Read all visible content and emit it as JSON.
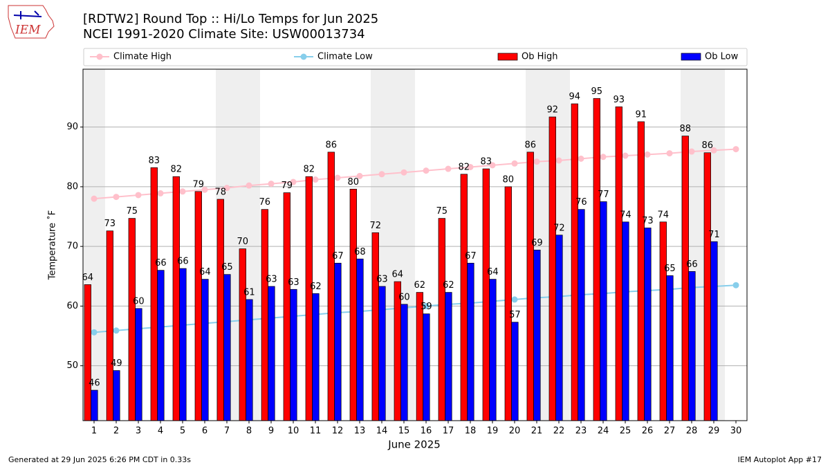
{
  "chart_data": {
    "type": "bar",
    "title": "[RDTW2] Round Top :: Hi/Lo Temps for Jun 2025",
    "subtitle": "NCEI 1991-2020 Climate Site: USW00013734",
    "logo_text": "IEM",
    "xlabel": "June 2025",
    "ylabel": "Temperature ˚F",
    "footer_left": "Generated at 29 Jun 2025 6:26 PM CDT in 0.33s",
    "footer_right": "IEM Autoplot App #17",
    "categories": [
      "1",
      "2",
      "3",
      "4",
      "5",
      "6",
      "7",
      "8",
      "9",
      "10",
      "11",
      "12",
      "13",
      "14",
      "15",
      "16",
      "17",
      "18",
      "19",
      "20",
      "21",
      "22",
      "23",
      "24",
      "25",
      "26",
      "27",
      "28",
      "29",
      "30"
    ],
    "ylim": [
      40.8,
      99.7
    ],
    "yticks": [
      50,
      60,
      70,
      80,
      90
    ],
    "grid": true,
    "legend": "top",
    "series": [
      {
        "name": "Climate High",
        "kind": "line",
        "color": "#ffc0cb",
        "values": [
          78.0,
          78.3,
          78.6,
          78.9,
          79.2,
          79.5,
          79.8,
          80.2,
          80.5,
          80.8,
          81.2,
          81.5,
          81.8,
          82.1,
          82.4,
          82.7,
          83.0,
          83.3,
          83.6,
          83.9,
          84.2,
          84.4,
          84.7,
          85.0,
          85.2,
          85.4,
          85.6,
          85.9,
          86.1,
          86.3
        ]
      },
      {
        "name": "Climate Low",
        "kind": "line",
        "color": "#87ceeb",
        "values": [
          55.6,
          55.9,
          56.2,
          56.5,
          56.8,
          57.1,
          57.4,
          57.7,
          58.0,
          58.3,
          58.6,
          58.9,
          59.1,
          59.4,
          59.7,
          60.0,
          60.3,
          60.5,
          60.8,
          61.1,
          61.4,
          61.6,
          61.9,
          62.1,
          62.4,
          62.6,
          62.8,
          63.1,
          63.3,
          63.5
        ]
      },
      {
        "name": "Ob High",
        "kind": "bar",
        "color": "#ff0000",
        "values": [
          63.6,
          72.6,
          74.7,
          83.2,
          81.7,
          79.2,
          77.9,
          69.6,
          76.2,
          79.0,
          81.7,
          85.8,
          79.6,
          72.3,
          64.1,
          62.3,
          74.7,
          82.1,
          83.0,
          80.0,
          85.8,
          91.7,
          93.9,
          94.8,
          93.4,
          90.9,
          74.1,
          88.5,
          85.7,
          null
        ],
        "value_labels": [
          "64",
          "73",
          "75",
          "83",
          "82",
          "79",
          "78",
          "70",
          "76",
          "79",
          "82",
          "86",
          "80",
          "72",
          "64",
          "62",
          "75",
          "82",
          "83",
          "80",
          "86",
          "92",
          "94",
          "95",
          "93",
          "91",
          "74",
          "88",
          "86",
          null
        ]
      },
      {
        "name": "Ob Low",
        "kind": "bar",
        "color": "#0000ff",
        "values": [
          45.9,
          49.2,
          59.6,
          66.0,
          66.3,
          64.5,
          65.3,
          61.1,
          63.3,
          62.8,
          62.1,
          67.2,
          67.9,
          63.3,
          60.3,
          58.7,
          62.3,
          67.2,
          64.5,
          57.3,
          69.4,
          71.9,
          76.2,
          77.5,
          74.1,
          73.1,
          65.1,
          65.8,
          70.8,
          null
        ],
        "value_labels": [
          "46",
          "49",
          "60",
          "66",
          "66",
          "64",
          "65",
          "61",
          "63",
          "63",
          "62",
          "67",
          "68",
          "63",
          "60",
          "59",
          "62",
          "67",
          "64",
          "57",
          "69",
          "72",
          "76",
          "77",
          "74",
          "73",
          "65",
          "66",
          "71",
          null
        ]
      }
    ]
  }
}
